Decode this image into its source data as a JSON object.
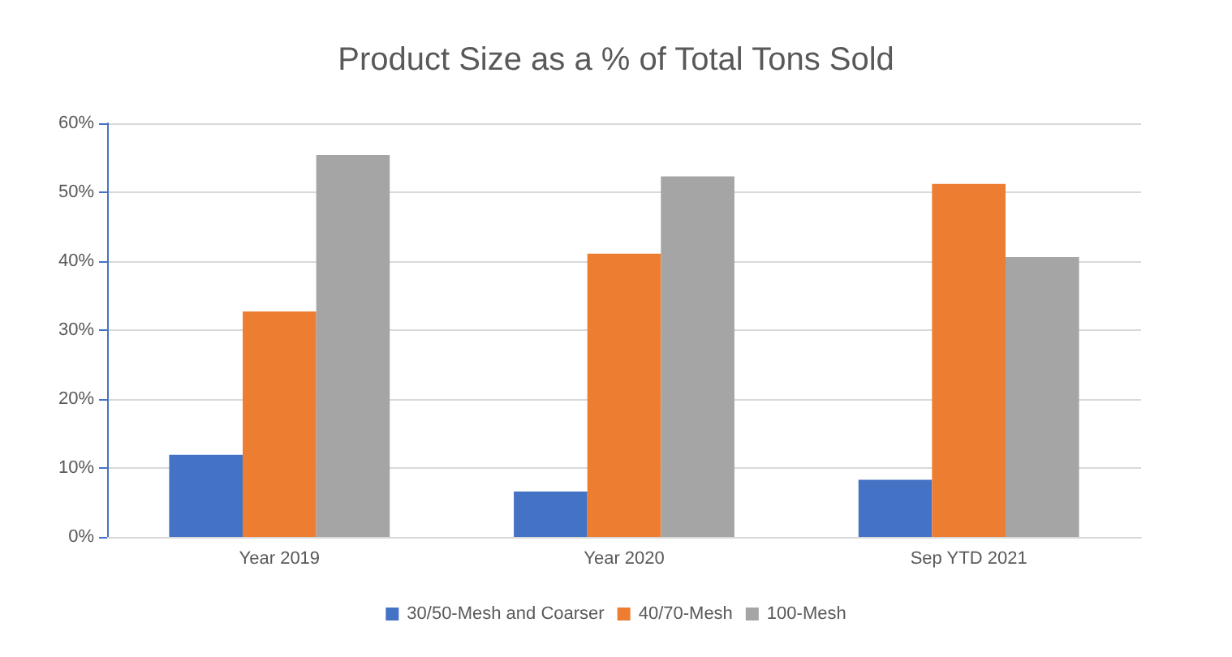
{
  "chart_data": {
    "type": "bar",
    "title": "Product Size as a % of Total Tons Sold",
    "categories": [
      "Year 2019",
      "Year 2020",
      "Sep YTD 2021"
    ],
    "series": [
      {
        "name": "30/50-Mesh and Coarser",
        "color": "#4472c4",
        "values": [
          11.9,
          6.6,
          8.3
        ]
      },
      {
        "name": "40/70-Mesh",
        "color": "#ed7d31",
        "values": [
          32.7,
          41.1,
          51.2
        ]
      },
      {
        "name": "100-Mesh",
        "color": "#a5a5a5",
        "values": [
          55.4,
          52.3,
          40.6
        ]
      }
    ],
    "ylim": [
      0,
      60
    ],
    "yticks": [
      {
        "value": 0,
        "label": "0%"
      },
      {
        "value": 10,
        "label": "10%"
      },
      {
        "value": 20,
        "label": "20%"
      },
      {
        "value": 30,
        "label": "30%"
      },
      {
        "value": 40,
        "label": "40%"
      },
      {
        "value": 50,
        "label": "50%"
      },
      {
        "value": 60,
        "label": "60%"
      }
    ],
    "grid": "y",
    "legend": "bottom"
  }
}
